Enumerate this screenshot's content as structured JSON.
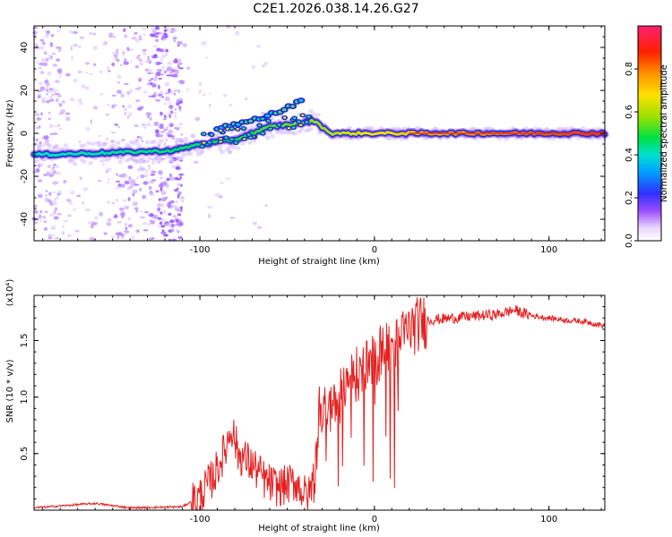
{
  "title": "C2E1.2026.038.14.26.G27",
  "chart_data": [
    {
      "type": "heatmap",
      "xlabel": "Height of straight line (km)",
      "ylabel": "Frequency (Hz)",
      "xlim": [
        -195,
        132
      ],
      "ylim": [
        -50,
        50
      ],
      "xticks": [
        -100,
        0,
        100
      ],
      "xtick_labels": [
        "-100",
        "0",
        "100"
      ],
      "yticks": [
        -40,
        -20,
        0,
        20,
        40
      ],
      "ytick_labels": [
        "-40",
        "-20",
        "0",
        "20",
        "40"
      ],
      "colorbar": {
        "label": "Normalized spectral amplitude",
        "range": [
          0,
          1
        ],
        "ticks": [
          0,
          0.2,
          0.4,
          0.6,
          0.8
        ],
        "tick_labels": [
          "0.0",
          "0.2",
          "0.4",
          "0.6",
          "0.8"
        ]
      },
      "ridge_track": [
        {
          "x": -195,
          "y": -10
        },
        {
          "x": -150,
          "y": -9
        },
        {
          "x": -115,
          "y": -8
        },
        {
          "x": -100,
          "y": -5
        },
        {
          "x": -80,
          "y": -3
        },
        {
          "x": -60,
          "y": 3
        },
        {
          "x": -40,
          "y": 5
        },
        {
          "x": -35,
          "y": 6
        },
        {
          "x": -25,
          "y": 0
        },
        {
          "x": 0,
          "y": 0
        },
        {
          "x": 132,
          "y": 0
        }
      ],
      "upper_branch": [
        {
          "x": -90,
          "y": 2
        },
        {
          "x": -70,
          "y": 6
        },
        {
          "x": -55,
          "y": 10
        },
        {
          "x": -45,
          "y": 14
        },
        {
          "x": -40,
          "y": 17
        }
      ]
    },
    {
      "type": "line",
      "xlabel": "Height of straight line (km)",
      "ylabel": "SNR (10 * v/v)",
      "scale_label": "(x10⁴)",
      "xlim": [
        -195,
        132
      ],
      "ylim": [
        0,
        1.9
      ],
      "xticks": [
        -100,
        0,
        100
      ],
      "xtick_labels": [
        "-100",
        "0",
        "100"
      ],
      "yticks": [
        0.5,
        1.0,
        1.5
      ],
      "ytick_labels": [
        "0.5",
        "1.0",
        "1.5"
      ],
      "series": [
        {
          "name": "SNR",
          "color": "#e52020",
          "x": [
            -195,
            -160,
            -140,
            -110,
            -100,
            -92,
            -85,
            -82,
            -78,
            -70,
            -62,
            -55,
            -45,
            -38,
            -34,
            -32,
            -28,
            -25,
            -20,
            -10,
            0,
            5,
            12,
            20,
            30,
            45,
            60,
            70,
            80,
            90,
            100,
            110,
            120,
            132
          ],
          "y": [
            0.02,
            0.06,
            0.02,
            0.03,
            0.12,
            0.3,
            0.55,
            0.75,
            0.5,
            0.4,
            0.25,
            0.2,
            0.25,
            0.1,
            0.35,
            0.85,
            1.0,
            0.85,
            1.05,
            1.2,
            1.3,
            1.45,
            1.45,
            1.6,
            1.68,
            1.7,
            1.72,
            1.73,
            1.77,
            1.72,
            1.7,
            1.68,
            1.67,
            1.63
          ]
        }
      ]
    }
  ]
}
